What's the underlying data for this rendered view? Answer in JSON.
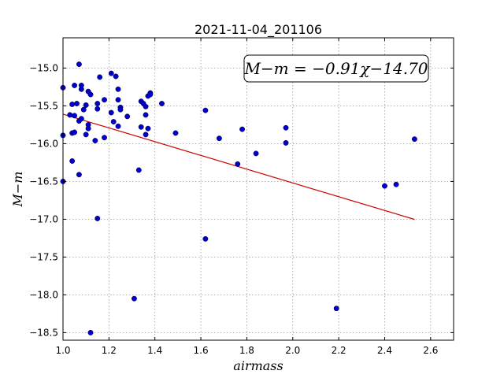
{
  "chart_data": {
    "type": "scatter",
    "title": "2021-11-04_201106",
    "xlabel": "airmass",
    "ylabel": "M−m",
    "xlim": [
      1.0,
      2.7
    ],
    "ylim": [
      -18.6,
      -14.6
    ],
    "y_inverted": true,
    "grid": true,
    "x_ticks": [
      1.0,
      1.2,
      1.4,
      1.6,
      1.8,
      2.0,
      2.2,
      2.4,
      2.6
    ],
    "x_tick_labels": [
      "1.0",
      "1.2",
      "1.4",
      "1.6",
      "1.8",
      "2.0",
      "2.2",
      "2.4",
      "2.6"
    ],
    "y_ticks": [
      -15.0,
      -15.5,
      -16.0,
      -16.5,
      -17.0,
      -17.5,
      -18.0,
      -18.5
    ],
    "y_tick_labels": [
      "−15.0",
      "−15.5",
      "−16.0",
      "−16.5",
      "−17.0",
      "−17.5",
      "−18.0",
      "−18.5"
    ],
    "annotation": "M−m = −0.91χ−14.70",
    "colors": {
      "points": "#0000cc",
      "fit_line": "#cc0000",
      "grid": "#9a9a9a"
    },
    "points": [
      {
        "x": 1.0,
        "y": -15.26
      },
      {
        "x": 1.0,
        "y": -15.89
      },
      {
        "x": 1.0,
        "y": -16.5
      },
      {
        "x": 1.03,
        "y": -15.62
      },
      {
        "x": 1.04,
        "y": -15.48
      },
      {
        "x": 1.04,
        "y": -15.86
      },
      {
        "x": 1.04,
        "y": -16.23
      },
      {
        "x": 1.05,
        "y": -15.23
      },
      {
        "x": 1.05,
        "y": -15.63
      },
      {
        "x": 1.05,
        "y": -15.85
      },
      {
        "x": 1.06,
        "y": -15.47
      },
      {
        "x": 1.07,
        "y": -14.95
      },
      {
        "x": 1.07,
        "y": -15.7
      },
      {
        "x": 1.07,
        "y": -16.41
      },
      {
        "x": 1.08,
        "y": -15.28
      },
      {
        "x": 1.08,
        "y": -15.23
      },
      {
        "x": 1.08,
        "y": -15.67
      },
      {
        "x": 1.09,
        "y": -15.55
      },
      {
        "x": 1.1,
        "y": -15.49
      },
      {
        "x": 1.1,
        "y": -15.88
      },
      {
        "x": 1.11,
        "y": -15.31
      },
      {
        "x": 1.11,
        "y": -15.75
      },
      {
        "x": 1.11,
        "y": -15.8
      },
      {
        "x": 1.12,
        "y": -15.35
      },
      {
        "x": 1.12,
        "y": -18.5
      },
      {
        "x": 1.14,
        "y": -15.96
      },
      {
        "x": 1.15,
        "y": -15.47
      },
      {
        "x": 1.15,
        "y": -15.54
      },
      {
        "x": 1.15,
        "y": -16.99
      },
      {
        "x": 1.16,
        "y": -15.12
      },
      {
        "x": 1.18,
        "y": -15.42
      },
      {
        "x": 1.18,
        "y": -15.92
      },
      {
        "x": 1.21,
        "y": -15.07
      },
      {
        "x": 1.21,
        "y": -15.59
      },
      {
        "x": 1.22,
        "y": -15.71
      },
      {
        "x": 1.23,
        "y": -15.11
      },
      {
        "x": 1.24,
        "y": -15.77
      },
      {
        "x": 1.24,
        "y": -15.28
      },
      {
        "x": 1.24,
        "y": -15.42
      },
      {
        "x": 1.25,
        "y": -15.52
      },
      {
        "x": 1.25,
        "y": -15.55
      },
      {
        "x": 1.28,
        "y": -15.64
      },
      {
        "x": 1.31,
        "y": -18.05
      },
      {
        "x": 1.33,
        "y": -16.35
      },
      {
        "x": 1.34,
        "y": -15.44
      },
      {
        "x": 1.34,
        "y": -15.78
      },
      {
        "x": 1.35,
        "y": -15.47
      },
      {
        "x": 1.36,
        "y": -15.51
      },
      {
        "x": 1.36,
        "y": -15.62
      },
      {
        "x": 1.36,
        "y": -15.88
      },
      {
        "x": 1.37,
        "y": -15.8
      },
      {
        "x": 1.37,
        "y": -15.37
      },
      {
        "x": 1.38,
        "y": -15.33
      },
      {
        "x": 1.38,
        "y": -15.35
      },
      {
        "x": 1.43,
        "y": -15.47
      },
      {
        "x": 1.49,
        "y": -15.86
      },
      {
        "x": 1.62,
        "y": -15.56
      },
      {
        "x": 1.62,
        "y": -17.26
      },
      {
        "x": 1.68,
        "y": -15.93
      },
      {
        "x": 1.76,
        "y": -16.27
      },
      {
        "x": 1.78,
        "y": -15.81
      },
      {
        "x": 1.84,
        "y": -16.13
      },
      {
        "x": 1.97,
        "y": -15.79
      },
      {
        "x": 1.97,
        "y": -15.99
      },
      {
        "x": 2.19,
        "y": -18.18
      },
      {
        "x": 2.4,
        "y": -16.56
      },
      {
        "x": 2.45,
        "y": -16.54
      },
      {
        "x": 2.53,
        "y": -15.94
      }
    ],
    "fit_line": {
      "slope": -0.91,
      "intercept": -14.7,
      "x_range": [
        1.0,
        2.53
      ]
    }
  }
}
